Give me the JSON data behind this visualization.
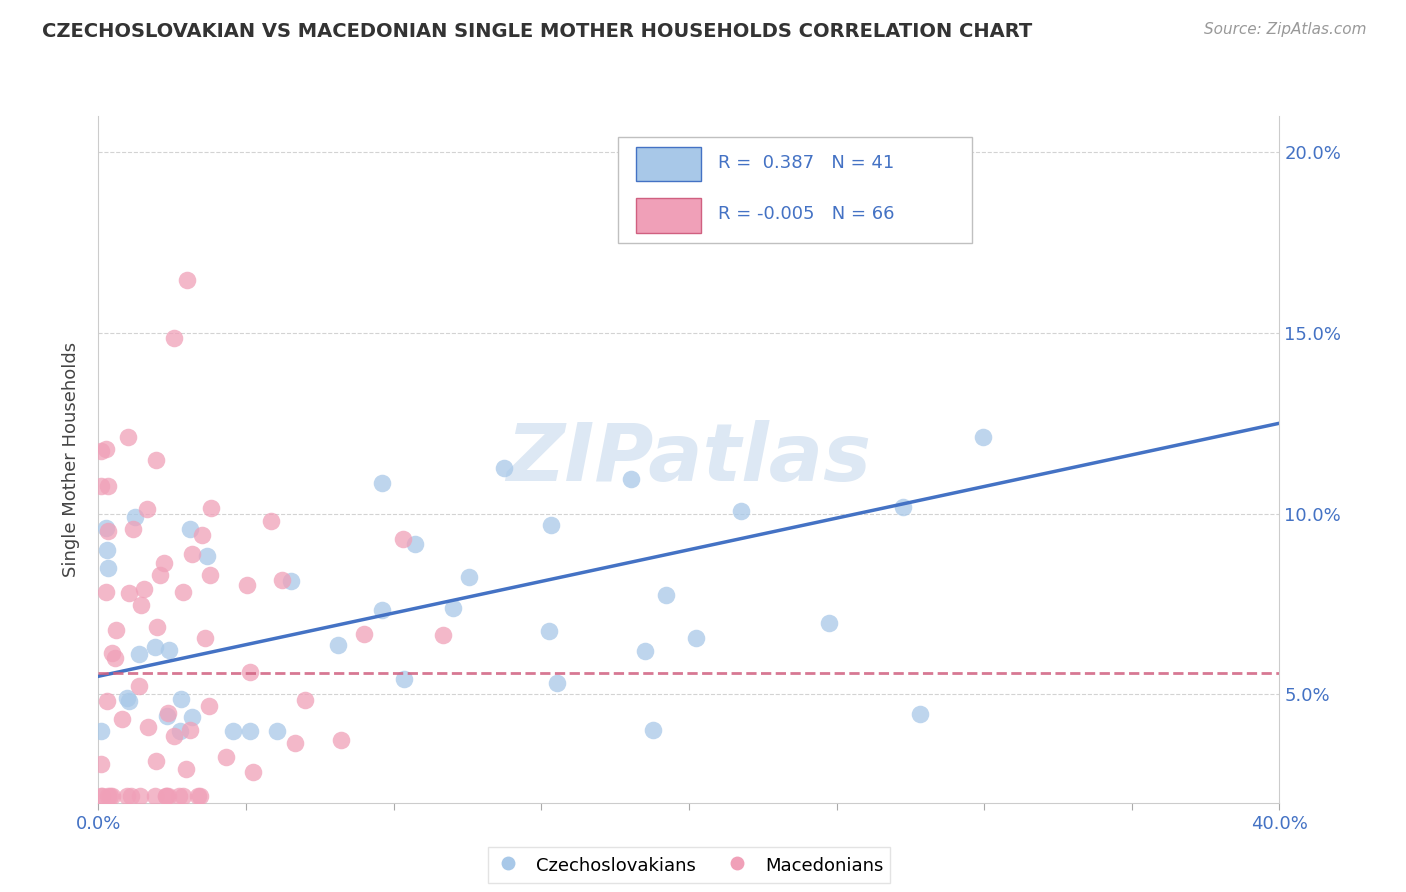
{
  "title": "CZECHOSLOVAKIAN VS MACEDONIAN SINGLE MOTHER HOUSEHOLDS CORRELATION CHART",
  "source": "Source: ZipAtlas.com",
  "ylabel": "Single Mother Households",
  "xlim": [
    0.0,
    0.4
  ],
  "ylim": [
    0.02,
    0.21
  ],
  "yticks": [
    0.05,
    0.1,
    0.15,
    0.2
  ],
  "ytick_labels": [
    "5.0%",
    "10.0%",
    "15.0%",
    "20.0%"
  ],
  "xticks": [
    0.0,
    0.05,
    0.1,
    0.15,
    0.2,
    0.25,
    0.3,
    0.35,
    0.4
  ],
  "color_czech": "#a8c8e8",
  "color_mac": "#f0a0b8",
  "color_czech_line": "#4472c4",
  "color_mac_line": "#d06080",
  "watermark": "ZIPatlas",
  "czech_R": 0.387,
  "czech_N": 41,
  "mac_R": -0.005,
  "mac_N": 66,
  "background_color": "#ffffff",
  "grid_color": "#c8c8c8",
  "czech_line_start_y": 0.055,
  "czech_line_end_y": 0.125,
  "mac_line_y": 0.056,
  "legend_box_color": "#ffffff",
  "legend_box_edge": "#c0c0c0",
  "title_color": "#333333",
  "source_color": "#999999",
  "tick_label_color": "#4472c4",
  "ylabel_color": "#444444"
}
